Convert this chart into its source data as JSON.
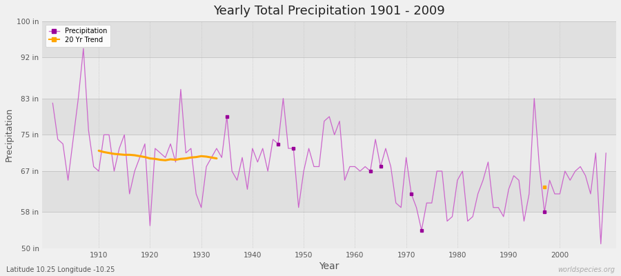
{
  "title": "Yearly Total Precipitation 1901 - 2009",
  "xlabel": "Year",
  "ylabel": "Precipitation",
  "subtitle": "Latitude 10.25 Longitude -10.25",
  "watermark": "worldspecies.org",
  "ylim": [
    50,
    100
  ],
  "yticks": [
    50,
    58,
    67,
    75,
    83,
    92,
    100
  ],
  "ytick_labels": [
    "50 in",
    "58 in",
    "67 in",
    "75 in",
    "83 in",
    "92 in",
    "100 in"
  ],
  "years": [
    1901,
    1902,
    1903,
    1904,
    1905,
    1906,
    1907,
    1908,
    1909,
    1910,
    1911,
    1912,
    1913,
    1914,
    1915,
    1916,
    1917,
    1918,
    1919,
    1920,
    1921,
    1922,
    1923,
    1924,
    1925,
    1926,
    1927,
    1928,
    1929,
    1930,
    1931,
    1932,
    1933,
    1934,
    1935,
    1936,
    1937,
    1938,
    1939,
    1940,
    1941,
    1942,
    1943,
    1944,
    1945,
    1946,
    1947,
    1948,
    1949,
    1950,
    1951,
    1952,
    1953,
    1954,
    1955,
    1956,
    1957,
    1958,
    1959,
    1960,
    1961,
    1962,
    1963,
    1964,
    1965,
    1966,
    1967,
    1968,
    1969,
    1970,
    1971,
    1972,
    1973,
    1974,
    1975,
    1976,
    1977,
    1978,
    1979,
    1980,
    1981,
    1982,
    1983,
    1984,
    1985,
    1986,
    1987,
    1988,
    1989,
    1990,
    1991,
    1992,
    1993,
    1994,
    1995,
    1996,
    1997,
    1998,
    1999,
    2000,
    2001,
    2002,
    2003,
    2004,
    2005,
    2006,
    2007,
    2008,
    2009
  ],
  "precip": [
    82,
    74,
    73,
    65,
    74,
    83,
    94,
    76,
    68,
    67,
    75,
    75,
    67,
    72,
    75,
    62,
    67,
    70,
    73,
    55,
    72,
    71,
    70,
    73,
    69,
    85,
    71,
    72,
    62,
    59,
    68,
    70,
    72,
    70,
    79,
    67,
    65,
    70,
    63,
    72,
    69,
    72,
    67,
    74,
    73,
    83,
    72,
    72,
    59,
    67,
    72,
    68,
    68,
    78,
    79,
    75,
    78,
    65,
    68,
    68,
    67,
    68,
    67,
    74,
    68,
    72,
    68,
    60,
    59,
    70,
    62,
    59,
    54,
    60,
    60,
    67,
    67,
    56,
    57,
    65,
    67,
    56,
    57,
    62,
    65,
    69,
    59,
    59,
    57,
    63,
    66,
    65,
    56,
    62,
    83,
    68,
    58,
    65,
    62,
    62,
    67,
    65,
    67,
    68,
    66,
    62,
    71,
    51,
    71
  ],
  "isolated_indices": [
    34,
    44,
    47,
    62,
    64,
    70,
    72,
    96
  ],
  "trend_years": [
    1910,
    1911,
    1912,
    1913,
    1914,
    1915,
    1916,
    1917,
    1918,
    1919,
    1920,
    1921,
    1922,
    1923,
    1924,
    1925,
    1926,
    1927,
    1928,
    1929,
    1930,
    1931,
    1932,
    1933
  ],
  "trend_values": [
    71.5,
    71.2,
    71.0,
    70.8,
    70.7,
    70.6,
    70.6,
    70.5,
    70.3,
    70.1,
    69.8,
    69.7,
    69.5,
    69.4,
    69.6,
    69.5,
    69.7,
    69.8,
    70.0,
    70.1,
    70.3,
    70.2,
    70.0,
    69.8
  ],
  "trend_marker_year": 1997,
  "trend_marker_value": 63.5,
  "precip_color": "#990099",
  "precip_line_color": "#CC66CC",
  "trend_color": "#FFA500",
  "bg_light": "#F0F0F0",
  "bg_dark": "#E0E0E0",
  "grid_color": "#CCCCCC",
  "title_color": "#222222",
  "axis_color": "#555555",
  "band_colors": [
    "#EBEBEB",
    "#E0E0E0"
  ]
}
